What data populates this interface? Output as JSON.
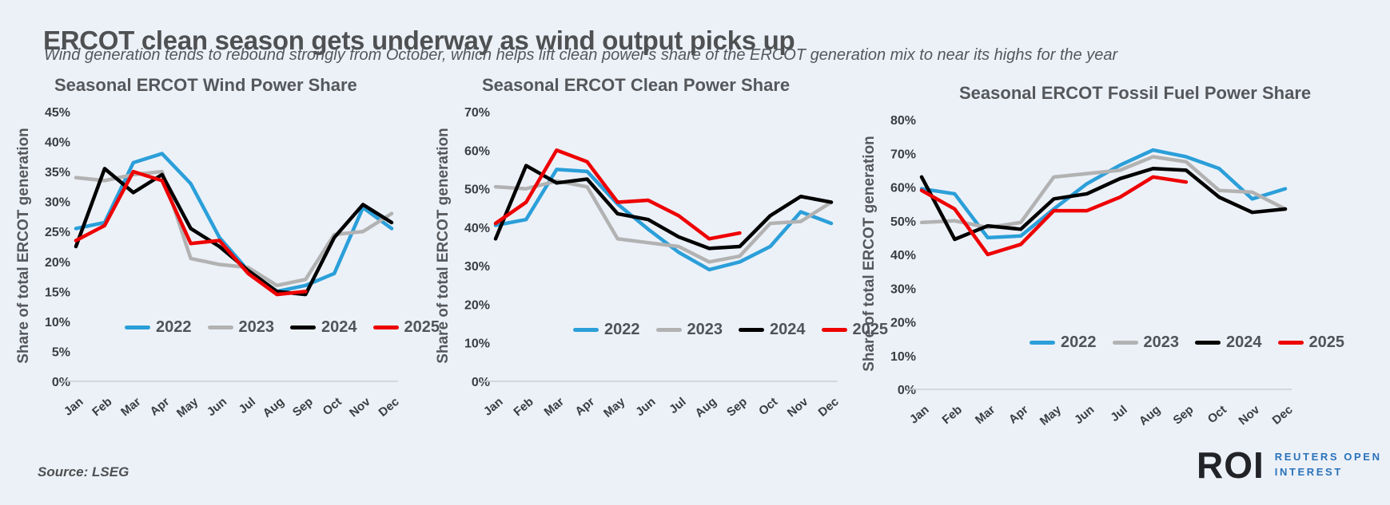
{
  "page": {
    "title": "ERCOT clean season gets underway as wind output picks up",
    "subtitle": "Wind generation tends to rebound strongly from October, which helps lift clean power's share of the ERCOT generation mix to near its highs for the year",
    "source": "Source: LSEG",
    "background_color": "#ECF1F8"
  },
  "logo": {
    "abbr": "ROI",
    "line1": "REUTERS OPEN",
    "line2": "INTEREST",
    "abbr_color": "#212327",
    "text_color": "#2A72B9"
  },
  "series_colors": {
    "2022": "#2B9FD9",
    "2023": "#B2B2B2",
    "2024": "#000000",
    "2025": "#EE0000"
  },
  "chart_data": [
    {
      "type": "line",
      "title": "Seasonal ERCOT Wind Power Share",
      "ylabel": "Share of total ERCOT generation",
      "x": [
        "Jan",
        "Feb",
        "Mar",
        "Apr",
        "May",
        "Jun",
        "Jul",
        "Aug",
        "Sep",
        "Oct",
        "Nov",
        "Dec"
      ],
      "ylim": [
        0,
        45
      ],
      "ytick": 5,
      "grid": false,
      "legend_position": "inside-bottom",
      "series": [
        {
          "name": "2022",
          "color": "#2B9FD9",
          "values": [
            25.5,
            26.5,
            36.5,
            38,
            33,
            24,
            18.5,
            15,
            16,
            18,
            29,
            25.5
          ]
        },
        {
          "name": "2023",
          "color": "#B2B2B2",
          "values": [
            34,
            33.5,
            34.5,
            35,
            20.5,
            19.5,
            19,
            16,
            17,
            24.5,
            25,
            28
          ]
        },
        {
          "name": "2024",
          "color": "#000000",
          "values": [
            22.5,
            35.5,
            31.5,
            34.5,
            25.5,
            22.5,
            18.5,
            15,
            14.5,
            24,
            29.5,
            26.5
          ]
        },
        {
          "name": "2025",
          "color": "#EE0000",
          "values": [
            23.5,
            26,
            35,
            33.5,
            23,
            23.5,
            18,
            14.5,
            15
          ]
        }
      ]
    },
    {
      "type": "line",
      "title": "Seasonal ERCOT Clean Power Share",
      "ylabel": "Share of total ERCOT generation",
      "x": [
        "Jan",
        "Feb",
        "Mar",
        "Apr",
        "May",
        "Jun",
        "Jul",
        "Aug",
        "Sep",
        "Oct",
        "Nov",
        "Dec"
      ],
      "ylim": [
        0,
        70
      ],
      "ytick": 10,
      "grid": false,
      "legend_position": "inside-bottom",
      "series": [
        {
          "name": "2022",
          "color": "#2B9FD9",
          "values": [
            40.5,
            42,
            55,
            54.5,
            46,
            39.5,
            33.5,
            29,
            31,
            35,
            44,
            41
          ]
        },
        {
          "name": "2023",
          "color": "#B2B2B2",
          "values": [
            50.5,
            50,
            52,
            50.5,
            37,
            36,
            35,
            31,
            32.5,
            41,
            41.5,
            46.5
          ]
        },
        {
          "name": "2024",
          "color": "#000000",
          "values": [
            37,
            56,
            51.5,
            52.5,
            43.5,
            42,
            37.5,
            34.5,
            35,
            43,
            48,
            46.5
          ]
        },
        {
          "name": "2025",
          "color": "#EE0000",
          "values": [
            41,
            46.5,
            60,
            57,
            46.5,
            47,
            43,
            37,
            38.5
          ]
        }
      ]
    },
    {
      "type": "line",
      "title": "Seasonal ERCOT Fossil Fuel Power Share",
      "ylabel": "Share of total ERCOT generation",
      "x": [
        "Jan",
        "Feb",
        "Mar",
        "Apr",
        "May",
        "Jun",
        "Jul",
        "Aug",
        "Sep",
        "Oct",
        "Nov",
        "Dec"
      ],
      "ylim": [
        0,
        80
      ],
      "ytick": 10,
      "grid": false,
      "legend_position": "inside-bottom",
      "series": [
        {
          "name": "2022",
          "color": "#2B9FD9",
          "values": [
            59.5,
            58,
            45,
            45.5,
            53.5,
            61,
            66.5,
            71,
            69,
            65.5,
            56.5,
            59.5
          ]
        },
        {
          "name": "2023",
          "color": "#B2B2B2",
          "values": [
            49.5,
            50,
            48,
            49.5,
            63,
            64,
            65,
            69,
            67.5,
            59,
            58.5,
            53.5
          ]
        },
        {
          "name": "2024",
          "color": "#000000",
          "values": [
            63,
            44.5,
            48.5,
            47.5,
            56.5,
            58,
            62.5,
            65.5,
            65,
            57,
            52.5,
            53.5
          ]
        },
        {
          "name": "2025",
          "color": "#EE0000",
          "values": [
            59,
            53.5,
            40,
            43,
            53,
            53,
            57,
            63,
            61.5
          ]
        }
      ]
    }
  ]
}
